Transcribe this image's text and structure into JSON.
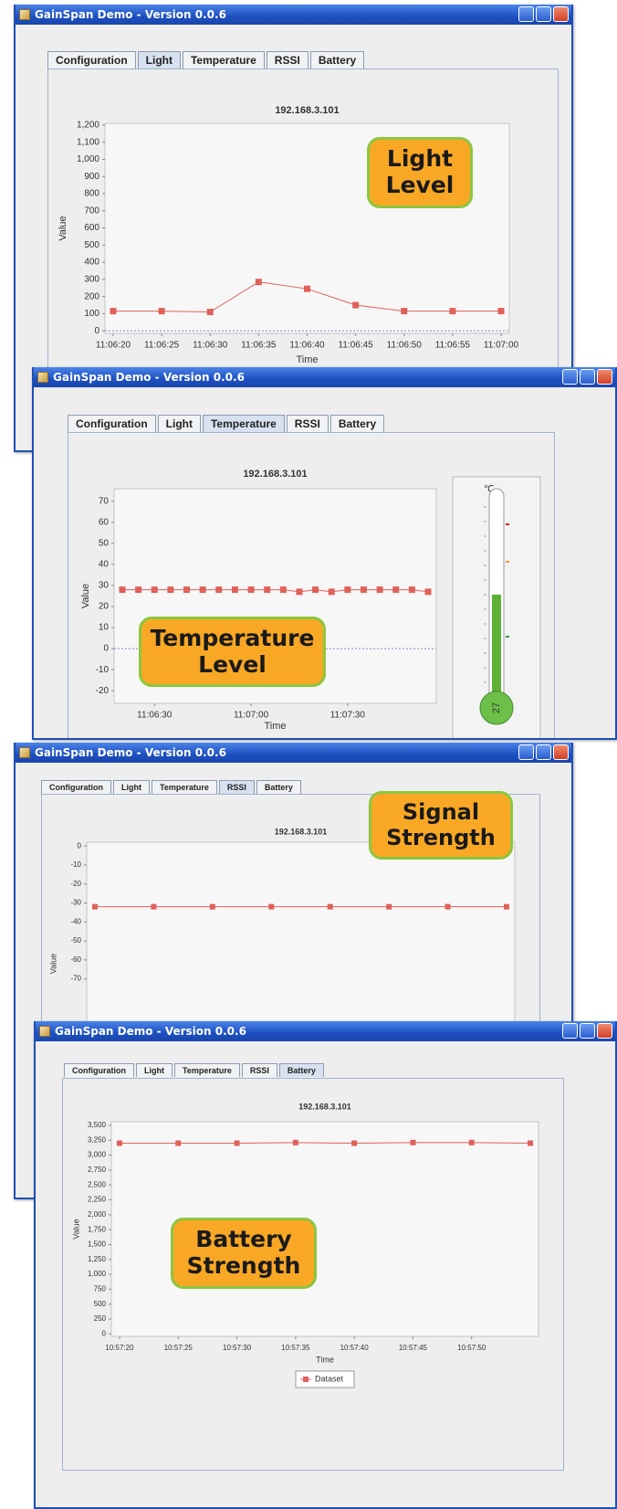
{
  "windows": [
    {
      "title": "GainSpan Demo - Version 0.0.6",
      "tabs": [
        "Configuration",
        "Light",
        "Temperature",
        "RSSI",
        "Battery"
      ],
      "active_tab": 1,
      "callout": "Light Level"
    },
    {
      "title": "GainSpan Demo - Version 0.0.6",
      "tabs": [
        "Configuration",
        "Light",
        "Temperature",
        "RSSI",
        "Battery"
      ],
      "active_tab": 2,
      "callout": "Temperature Level"
    },
    {
      "title": "GainSpan Demo - Version 0.0.6",
      "tabs": [
        "Configuration",
        "Light",
        "Temperature",
        "RSSI",
        "Battery"
      ],
      "active_tab": 3,
      "callout": "Signal Strength"
    },
    {
      "title": "GainSpan Demo - Version 0.0.6",
      "tabs": [
        "Configuration",
        "Light",
        "Temperature",
        "RSSI",
        "Battery"
      ],
      "active_tab": 4,
      "callout": "Battery Strength"
    }
  ],
  "chart_data": [
    {
      "type": "line",
      "title": "192.168.3.101",
      "x_label": "Time",
      "y_label": "Value",
      "zero_line": true,
      "categories": [
        "11:06:20",
        "11:06:25",
        "11:06:30",
        "11:06:35",
        "11:06:40",
        "11:06:45",
        "11:06:50",
        "11:06:55",
        "11:07:00"
      ],
      "series": [
        {
          "color": "#e0605a",
          "values": [
            115,
            115,
            110,
            285,
            245,
            150,
            115,
            115,
            115
          ]
        }
      ],
      "ylim": [
        -15,
        1210
      ],
      "yticks": [
        0,
        100,
        200,
        300,
        400,
        500,
        600,
        700,
        800,
        900,
        {
          "value": 1000,
          "label": "1,000"
        },
        {
          "value": 1100,
          "label": "1,100"
        },
        {
          "value": 1200,
          "label": "1,200"
        }
      ]
    },
    {
      "type": "line",
      "title": "192.168.3.101",
      "x_label": "Time",
      "y_label": "Value",
      "zero_line": true,
      "categories": [
        null,
        null,
        "11:06:30",
        null,
        null,
        null,
        null,
        null,
        "11:07:00",
        null,
        null,
        null,
        null,
        null,
        "11:07:30",
        null,
        null,
        null,
        null,
        null
      ],
      "series": [
        {
          "color": "#e0605a",
          "values": [
            28,
            28,
            28,
            28,
            28,
            28,
            28,
            28,
            28,
            28,
            28,
            27,
            28,
            27,
            28,
            28,
            28,
            28,
            28,
            27
          ]
        }
      ],
      "ylim": [
        -26,
        76
      ],
      "yticks": [
        -20,
        -10,
        0,
        10,
        20,
        30,
        40,
        50,
        60,
        70
      ],
      "thermometer": {
        "unit": "℃",
        "value": 27,
        "lim": [
          -30,
          90
        ]
      }
    },
    {
      "type": "line",
      "title": "192.168.3.101",
      "y_label": "Value",
      "categories": [
        null,
        null,
        null,
        null,
        null,
        null,
        null,
        null
      ],
      "series": [
        {
          "color": "#e0605a",
          "values": [
            -32,
            -32,
            -32,
            -32,
            -32,
            -32,
            -32,
            -32
          ]
        }
      ],
      "ylim": [
        -126,
        2
      ],
      "yticks": [
        -70,
        -60,
        -50,
        -40,
        -30,
        -20,
        -10,
        0
      ]
    },
    {
      "type": "line",
      "title": "192.168.3.101",
      "x_label": "Time",
      "y_label": "Value",
      "categories": [
        "10:57:20",
        "10:57:25",
        "10:57:30",
        "10:57:35",
        "10:57:40",
        "10:57:45",
        "10:57:50",
        null
      ],
      "series": [
        {
          "name": "Dataset",
          "color": "#e0605a",
          "values": [
            3200,
            3200,
            3200,
            3210,
            3200,
            3210,
            3210,
            3200
          ]
        }
      ],
      "ylim": [
        -40,
        3560
      ],
      "yticks": [
        0,
        250,
        500,
        750,
        {
          "value": 1000,
          "label": "1,000"
        },
        {
          "value": 1250,
          "label": "1,250"
        },
        {
          "value": 1500,
          "label": "1,500"
        },
        {
          "value": 1750,
          "label": "1,750"
        },
        {
          "value": 2000,
          "label": "2,000"
        },
        {
          "value": 2250,
          "label": "2,250"
        },
        {
          "value": 2500,
          "label": "2,500"
        },
        {
          "value": 2750,
          "label": "2,750"
        },
        {
          "value": 3000,
          "label": "3,000"
        },
        {
          "value": 3250,
          "label": "3,250"
        },
        {
          "value": 3500,
          "label": "3,500"
        }
      ]
    }
  ]
}
